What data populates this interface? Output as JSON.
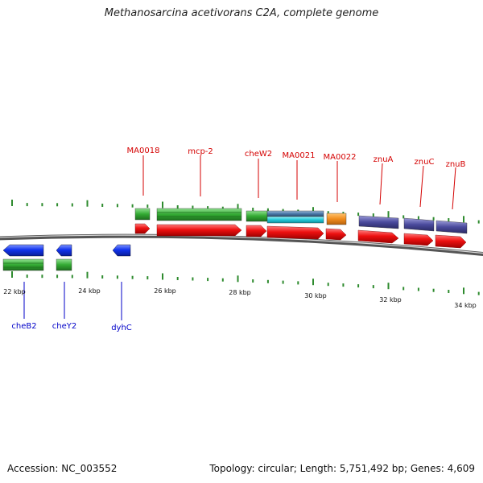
{
  "title": "Methanosarcina acetivorans C2A, complete genome",
  "footer": {
    "accession": "Accession: NC_003552",
    "stats": "Topology: circular; Length: 5,751,492 bp; Genes: 4,609"
  },
  "colors": {
    "label_forward": "#d40000",
    "label_reverse": "#0000c8",
    "cds_red": "#ee1111",
    "cds_blue": "#1133ee",
    "green": "#33aa33",
    "teal": "#22c8d8",
    "steelblue": "#4a78a8",
    "orange": "#f08c1e",
    "purple": "#4a4a9c",
    "tick": "#2e8b2e",
    "backbone": "#777777"
  },
  "scale_labels": [
    "22 kbp",
    "24 kbp",
    "26 kbp",
    "28 kbp",
    "30 kbp",
    "32 kbp",
    "34 kbp"
  ],
  "forward_genes": [
    "MA0018",
    "mcp-2",
    "cheW2",
    "MA0021",
    "MA0022",
    "znuA",
    "znuC",
    "znuB"
  ],
  "reverse_genes": [
    "cheB2",
    "cheY2",
    "dyhC"
  ]
}
